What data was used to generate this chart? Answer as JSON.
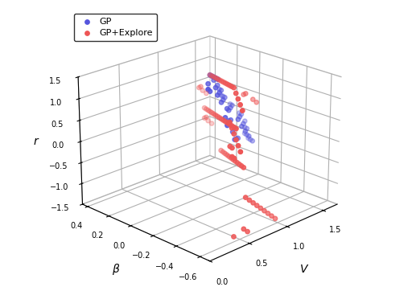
{
  "xlabel": "V",
  "ylabel": "β",
  "zlabel": "r",
  "gp_color": "#5555dd",
  "explore_color": "#ee5555",
  "gp_hull_color": [
    0.55,
    0.55,
    0.85,
    0.4
  ],
  "explore_hull_color": [
    0.92,
    0.6,
    0.6,
    0.4
  ],
  "xlim": [
    0,
    1.7
  ],
  "ylim": [
    -0.68,
    0.45
  ],
  "zlim": [
    -1.5,
    1.5
  ],
  "elev": 22,
  "azim": -135,
  "xticks": [
    0,
    0.5,
    1.0,
    1.5
  ],
  "yticks": [
    -0.6,
    -0.4,
    -0.2,
    0.0,
    0.2,
    0.4
  ],
  "zticks": [
    -1.5,
    -1.0,
    -0.5,
    0.0,
    0.5,
    1.0,
    1.5
  ],
  "gp_points": [
    [
      0.9,
      -0.15,
      1.45
    ],
    [
      0.95,
      -0.1,
      1.4
    ],
    [
      1.0,
      -0.05,
      1.35
    ],
    [
      1.05,
      0.0,
      1.3
    ],
    [
      1.1,
      0.05,
      1.25
    ],
    [
      0.85,
      -0.1,
      1.2
    ],
    [
      1.0,
      0.0,
      1.15
    ],
    [
      1.15,
      0.05,
      1.1
    ],
    [
      0.95,
      -0.05,
      1.05
    ],
    [
      1.1,
      0.0,
      1.0
    ],
    [
      1.2,
      0.05,
      0.95
    ],
    [
      1.05,
      -0.05,
      0.9
    ],
    [
      1.15,
      0.0,
      0.85
    ],
    [
      1.25,
      0.05,
      0.8
    ],
    [
      1.3,
      0.1,
      0.75
    ],
    [
      1.1,
      -0.05,
      0.7
    ],
    [
      1.2,
      0.0,
      0.65
    ],
    [
      1.3,
      0.05,
      0.6
    ],
    [
      1.35,
      0.1,
      0.55
    ],
    [
      1.4,
      0.15,
      0.5
    ],
    [
      1.2,
      -0.05,
      0.45
    ],
    [
      1.3,
      0.0,
      0.4
    ],
    [
      1.4,
      0.05,
      0.35
    ],
    [
      1.45,
      0.1,
      0.3
    ],
    [
      1.25,
      -0.1,
      0.25
    ],
    [
      1.35,
      -0.05,
      0.2
    ],
    [
      1.45,
      0.0,
      0.15
    ],
    [
      1.5,
      0.05,
      0.1
    ],
    [
      1.3,
      -0.1,
      0.05
    ],
    [
      1.4,
      -0.05,
      0.0
    ],
    [
      1.5,
      0.0,
      -0.05
    ],
    [
      1.35,
      -0.1,
      -0.1
    ],
    [
      1.45,
      -0.05,
      -0.15
    ],
    [
      1.5,
      0.0,
      -0.2
    ],
    [
      1.4,
      -0.1,
      -0.25
    ],
    [
      1.45,
      -0.05,
      -0.3
    ],
    [
      1.5,
      0.0,
      -0.35
    ],
    [
      1.45,
      -0.1,
      -0.4
    ],
    [
      1.5,
      -0.05,
      -0.45
    ],
    [
      1.55,
      0.0,
      -0.5
    ],
    [
      1.1,
      -0.1,
      0.6
    ],
    [
      1.0,
      -0.15,
      0.5
    ],
    [
      0.95,
      -0.2,
      0.4
    ],
    [
      1.05,
      -0.15,
      0.35
    ],
    [
      1.15,
      -0.1,
      0.3
    ],
    [
      1.2,
      -0.05,
      0.2
    ],
    [
      1.1,
      -0.15,
      0.1
    ],
    [
      1.05,
      -0.2,
      0.0
    ],
    [
      1.15,
      -0.15,
      -0.1
    ],
    [
      1.25,
      -0.1,
      -0.2
    ]
  ],
  "explore_points": [
    [
      0.55,
      -0.55,
      0.55
    ],
    [
      0.6,
      -0.5,
      0.6
    ],
    [
      0.65,
      -0.45,
      0.65
    ],
    [
      0.7,
      -0.4,
      0.7
    ],
    [
      0.75,
      -0.35,
      0.75
    ],
    [
      0.5,
      -0.6,
      0.5
    ],
    [
      0.55,
      -0.5,
      0.45
    ],
    [
      0.6,
      -0.45,
      0.4
    ],
    [
      0.5,
      -0.55,
      0.3
    ],
    [
      0.55,
      -0.5,
      0.25
    ],
    [
      0.6,
      -0.55,
      1.3
    ],
    [
      0.65,
      -0.5,
      1.35
    ],
    [
      0.7,
      -0.45,
      1.4
    ],
    [
      0.75,
      -0.4,
      1.45
    ],
    [
      0.8,
      -0.35,
      1.5
    ],
    [
      0.85,
      -0.3,
      1.45
    ],
    [
      0.9,
      -0.25,
      1.4
    ],
    [
      0.95,
      -0.2,
      1.35
    ],
    [
      1.0,
      -0.15,
      1.3
    ],
    [
      1.05,
      -0.1,
      1.25
    ],
    [
      1.1,
      -0.05,
      1.2
    ],
    [
      1.15,
      0.0,
      1.15
    ],
    [
      1.2,
      0.05,
      1.1
    ],
    [
      1.25,
      0.1,
      1.05
    ],
    [
      1.3,
      0.15,
      1.0
    ],
    [
      1.35,
      0.2,
      0.95
    ],
    [
      1.4,
      0.25,
      0.9
    ],
    [
      0.6,
      -0.5,
      0.85
    ],
    [
      0.65,
      -0.45,
      0.8
    ],
    [
      0.7,
      -0.4,
      0.75
    ],
    [
      0.75,
      -0.35,
      0.7
    ],
    [
      0.8,
      -0.3,
      0.65
    ],
    [
      0.85,
      -0.25,
      0.6
    ],
    [
      0.9,
      -0.2,
      0.55
    ],
    [
      0.95,
      -0.15,
      0.5
    ],
    [
      1.0,
      -0.1,
      0.45
    ],
    [
      1.05,
      -0.05,
      0.4
    ],
    [
      1.1,
      0.0,
      0.35
    ],
    [
      1.15,
      0.05,
      0.3
    ],
    [
      1.2,
      0.1,
      0.25
    ],
    [
      1.25,
      0.15,
      0.2
    ],
    [
      1.3,
      0.2,
      0.15
    ],
    [
      1.35,
      0.25,
      0.1
    ],
    [
      1.4,
      0.3,
      0.05
    ],
    [
      0.7,
      -0.5,
      -0.1
    ],
    [
      0.75,
      -0.45,
      -0.15
    ],
    [
      0.8,
      -0.4,
      -0.2
    ],
    [
      0.85,
      -0.35,
      -0.25
    ],
    [
      0.9,
      -0.3,
      -0.3
    ],
    [
      0.95,
      -0.25,
      -0.35
    ],
    [
      1.0,
      -0.2,
      -0.4
    ],
    [
      1.05,
      -0.15,
      -0.45
    ],
    [
      1.1,
      -0.1,
      -0.5
    ],
    [
      1.15,
      -0.05,
      -0.55
    ],
    [
      1.2,
      0.0,
      -0.6
    ],
    [
      1.25,
      0.05,
      -0.65
    ],
    [
      0.65,
      -0.55,
      -0.7
    ],
    [
      0.7,
      -0.55,
      -0.8
    ],
    [
      0.75,
      -0.55,
      -0.9
    ],
    [
      0.8,
      -0.55,
      -1.0
    ],
    [
      0.85,
      -0.55,
      -1.1
    ],
    [
      0.9,
      -0.55,
      -1.2
    ],
    [
      0.95,
      -0.55,
      -1.3
    ],
    [
      1.0,
      -0.55,
      -1.4
    ],
    [
      1.05,
      -0.55,
      -1.5
    ],
    [
      0.55,
      -0.6,
      -1.3
    ],
    [
      0.6,
      -0.6,
      -1.4
    ],
    [
      0.5,
      -0.55,
      -1.5
    ],
    [
      1.35,
      0.3,
      0.6
    ],
    [
      1.4,
      0.35,
      0.5
    ],
    [
      1.45,
      0.35,
      0.4
    ],
    [
      1.5,
      0.35,
      0.3
    ],
    [
      1.35,
      0.25,
      -0.1
    ],
    [
      1.4,
      0.3,
      -0.2
    ],
    [
      1.45,
      0.3,
      -0.3
    ],
    [
      1.5,
      0.3,
      -0.4
    ],
    [
      1.35,
      -0.1,
      0.8
    ],
    [
      1.4,
      -0.05,
      0.7
    ],
    [
      1.45,
      -0.1,
      0.6
    ],
    [
      1.5,
      -0.1,
      0.5
    ]
  ]
}
